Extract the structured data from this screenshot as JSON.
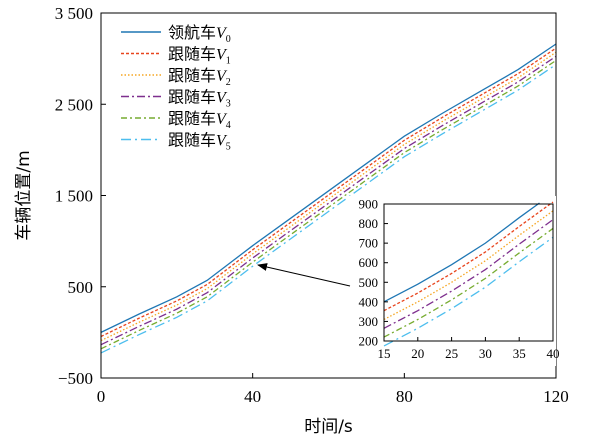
{
  "chart_data": [
    {
      "type": "line",
      "xlabel": "时间/s",
      "ylabel": "车辆位置/m",
      "xlim": [
        0,
        120
      ],
      "ylim": [
        -500,
        3500
      ],
      "x_ticks": [
        0,
        40,
        80,
        120
      ],
      "x_tick_labels": [
        "0",
        "40",
        "80",
        "120"
      ],
      "y_ticks": [
        -500,
        500,
        1500,
        2500,
        3500
      ],
      "y_tick_labels": [
        "−500",
        "500",
        "1 500",
        "2 500",
        "3 500"
      ],
      "grid": false,
      "legend_position": "top-left",
      "x": [
        0,
        10,
        20,
        28,
        40,
        50,
        60,
        70,
        75,
        80,
        90,
        100,
        110,
        120
      ],
      "series": [
        {
          "name": "领航车",
          "sub": "0",
          "color": "#1f77b4",
          "dash": "",
          "values": [
            0,
            200,
            390,
            570,
            950,
            1250,
            1550,
            1850,
            2000,
            2150,
            2400,
            2640,
            2880,
            3160
          ]
        },
        {
          "name": "跟随车",
          "sub": "1",
          "color": "#e8441d",
          "dash": "3,2",
          "values": [
            -45,
            155,
            345,
            525,
            905,
            1205,
            1505,
            1805,
            1955,
            2105,
            2355,
            2595,
            2835,
            3115
          ]
        },
        {
          "name": "跟随车",
          "sub": "2",
          "color": "#f5a623",
          "dash": "1.5,2",
          "values": [
            -90,
            110,
            300,
            480,
            860,
            1160,
            1460,
            1760,
            1910,
            2060,
            2310,
            2550,
            2790,
            3070
          ]
        },
        {
          "name": "跟随车",
          "sub": "3",
          "color": "#7e2f8e",
          "dash": "8,3,2,3",
          "values": [
            -135,
            65,
            255,
            435,
            815,
            1115,
            1415,
            1715,
            1865,
            2015,
            2265,
            2505,
            2745,
            3025
          ]
        },
        {
          "name": "跟随车",
          "sub": "4",
          "color": "#77ac30",
          "dash": "6,3,2,3",
          "values": [
            -180,
            20,
            210,
            390,
            770,
            1070,
            1370,
            1670,
            1820,
            1970,
            2220,
            2460,
            2700,
            2980
          ]
        },
        {
          "name": "跟随车",
          "sub": "5",
          "color": "#4dbeee",
          "dash": "10,4,2,4",
          "values": [
            -225,
            -25,
            165,
            345,
            725,
            1025,
            1325,
            1625,
            1775,
            1925,
            2175,
            2415,
            2655,
            2935
          ]
        }
      ]
    },
    {
      "type": "line",
      "role": "inset",
      "xlim": [
        15,
        40
      ],
      "ylim": [
        200,
        900
      ],
      "x_ticks": [
        15,
        20,
        25,
        30,
        35,
        40
      ],
      "x_tick_labels": [
        "15",
        "20",
        "25",
        "30",
        "35",
        "40"
      ],
      "y_ticks": [
        200,
        300,
        400,
        500,
        600,
        700,
        800,
        900
      ],
      "y_tick_labels": [
        "200",
        "300",
        "400",
        "500",
        "600",
        "700",
        "800",
        "900"
      ],
      "grid": false,
      "x": [
        15,
        20,
        25,
        30,
        35,
        38,
        40
      ],
      "series_values": [
        [
          400,
          490,
          590,
          700,
          830,
          905,
          905
        ],
        [
          355,
          445,
          545,
          655,
          785,
          860,
          910
        ],
        [
          310,
          400,
          500,
          610,
          740,
          815,
          865
        ],
        [
          265,
          355,
          455,
          565,
          695,
          770,
          820
        ],
        [
          220,
          310,
          410,
          520,
          650,
          725,
          775
        ],
        [
          175,
          265,
          365,
          475,
          605,
          680,
          730
        ]
      ],
      "series_last_x": [
        38,
        40,
        40,
        40,
        40,
        40
      ]
    }
  ]
}
